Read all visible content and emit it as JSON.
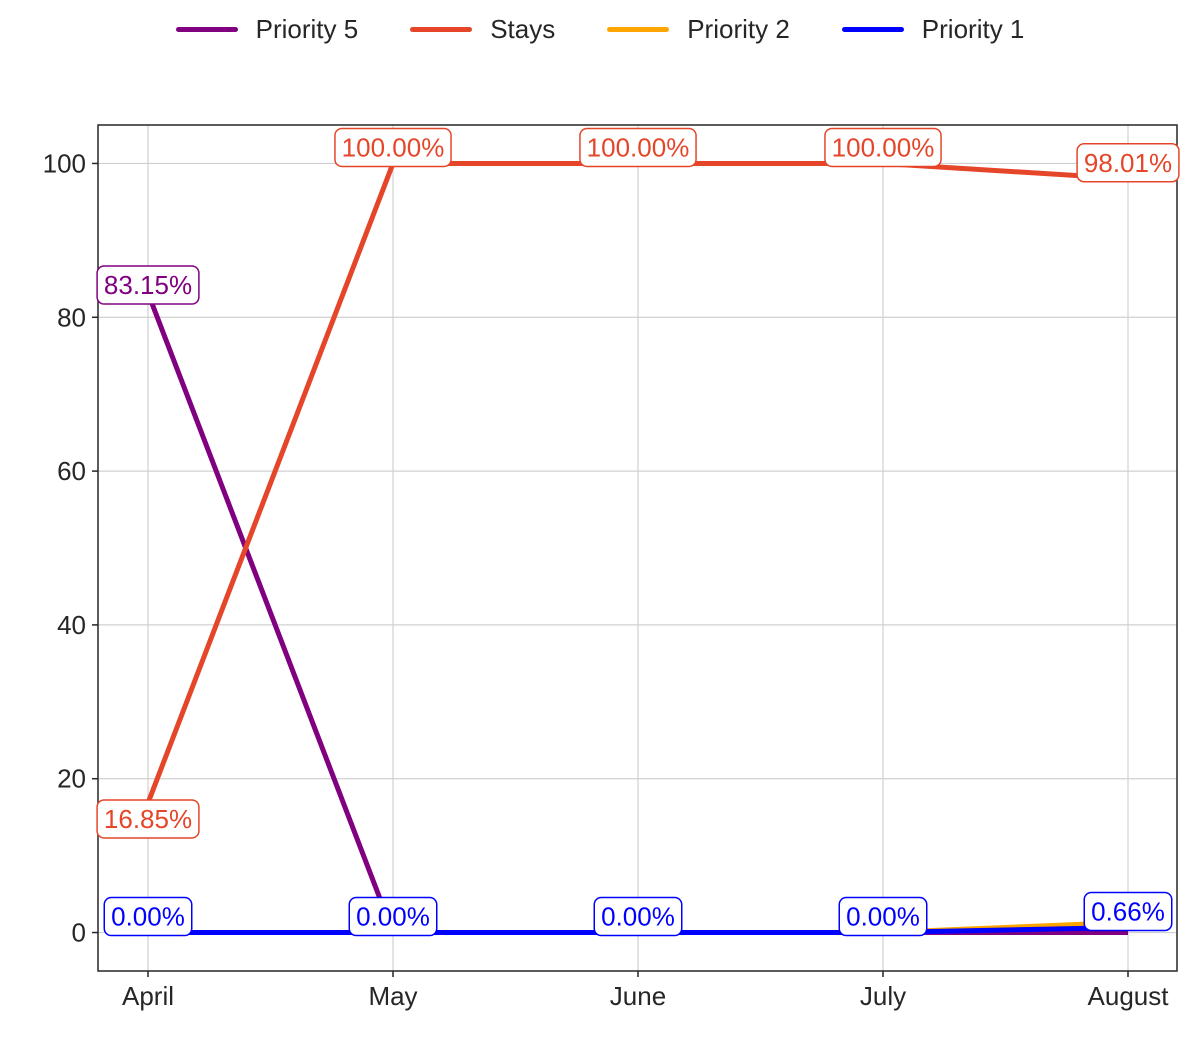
{
  "chart_data": {
    "type": "line",
    "title": "",
    "xlabel": "",
    "ylabel": "",
    "categories": [
      "April",
      "May",
      "June",
      "July",
      "August"
    ],
    "ylim": [
      -5,
      105
    ],
    "yticks": [
      0,
      20,
      40,
      60,
      80,
      100
    ],
    "grid": true,
    "legend_position": "top-center",
    "series": [
      {
        "name": "Priority 5",
        "color": "#800080",
        "values": [
          83.15,
          0,
          0,
          0,
          0.0
        ],
        "labels": [
          "83.15%",
          null,
          null,
          null,
          null
        ]
      },
      {
        "name": "Stays",
        "color": "#e5462a",
        "values": [
          16.85,
          100.0,
          100.0,
          100.0,
          98.01
        ],
        "labels": [
          "16.85%",
          "100.00%",
          "100.00%",
          "100.00%",
          "98.01%"
        ]
      },
      {
        "name": "Priority 2",
        "color": "#ffa500",
        "values": [
          0,
          0,
          0,
          0,
          1.33
        ],
        "labels": [
          null,
          null,
          null,
          null,
          null
        ]
      },
      {
        "name": "Priority 1",
        "color": "#0000ff",
        "values": [
          0.0,
          0.0,
          0.0,
          0.0,
          0.66
        ],
        "labels": [
          "0.00%",
          "0.00%",
          "0.00%",
          "0.00%",
          "0.66%"
        ]
      }
    ]
  }
}
